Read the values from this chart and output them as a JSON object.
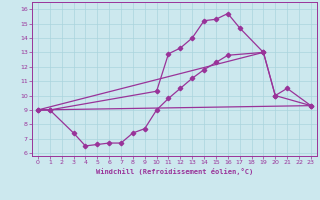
{
  "xlabel": "Windchill (Refroidissement éolien,°C)",
  "background_color": "#cce8ee",
  "line_color": "#993399",
  "grid_color": "#aad4dd",
  "xlim": [
    -0.5,
    23.5
  ],
  "ylim": [
    5.8,
    16.5
  ],
  "xticks": [
    0,
    1,
    2,
    3,
    4,
    5,
    6,
    7,
    8,
    9,
    10,
    11,
    12,
    13,
    14,
    15,
    16,
    17,
    18,
    19,
    20,
    21,
    22,
    23
  ],
  "yticks": [
    6,
    7,
    8,
    9,
    10,
    11,
    12,
    13,
    14,
    15,
    16
  ],
  "curve1_x": [
    0,
    1,
    10,
    11,
    12,
    13,
    14,
    15,
    16,
    17,
    19,
    20,
    21,
    23
  ],
  "curve1_y": [
    9.0,
    9.0,
    10.3,
    12.9,
    13.3,
    14.0,
    15.2,
    15.3,
    15.7,
    14.7,
    13.0,
    10.0,
    10.5,
    9.3
  ],
  "curve2_x": [
    0,
    1,
    3,
    4,
    5,
    6,
    7,
    8,
    9,
    10,
    11,
    12,
    13,
    14,
    15,
    16,
    19,
    20,
    23
  ],
  "curve2_y": [
    9.0,
    9.0,
    7.4,
    6.5,
    6.6,
    6.7,
    6.7,
    7.4,
    7.7,
    9.0,
    9.8,
    10.5,
    11.2,
    11.8,
    12.3,
    12.8,
    13.0,
    10.0,
    9.3
  ],
  "ref_line1_x": [
    0,
    23
  ],
  "ref_line1_y": [
    9.0,
    9.3
  ],
  "ref_line2_x": [
    0,
    19
  ],
  "ref_line2_y": [
    9.0,
    13.0
  ]
}
